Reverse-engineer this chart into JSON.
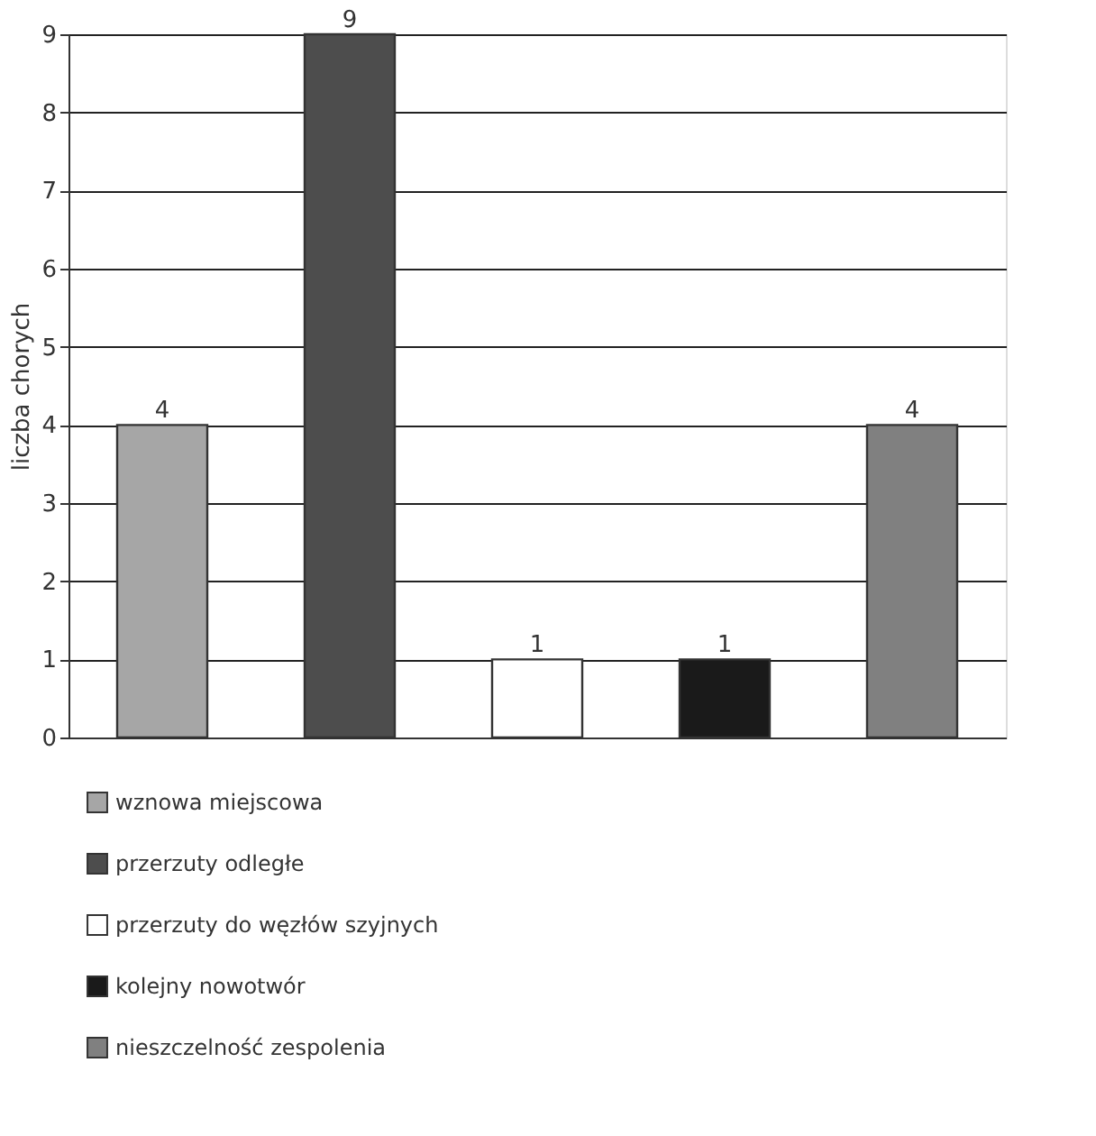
{
  "chart_data": {
    "type": "bar",
    "ylabel": "liczba chorych",
    "categories": [
      null,
      null,
      null,
      null,
      null
    ],
    "series": [
      {
        "name": "wznowa miejscowa",
        "color": "#a6a6a6",
        "values": [
          4,
          null,
          null,
          null,
          null
        ]
      },
      {
        "name": "przerzuty odległe",
        "color": "#4d4d4d",
        "values": [
          null,
          9,
          null,
          null,
          null
        ]
      },
      {
        "name": "przerzuty do węzłów szyjnych",
        "color": "#ffffff",
        "values": [
          null,
          null,
          1,
          null,
          null
        ]
      },
      {
        "name": "kolejny nowotwór",
        "color": "#1a1a1a",
        "values": [
          null,
          null,
          null,
          1,
          null
        ]
      },
      {
        "name": "nieszczelność zespolenia",
        "color": "#808080",
        "values": [
          null,
          null,
          null,
          null,
          4
        ]
      }
    ],
    "ylim": [
      0,
      9
    ],
    "yticks": [
      0,
      1,
      2,
      3,
      4,
      5,
      6,
      7,
      8,
      9
    ],
    "grid": "y",
    "legend": "bottom",
    "data_labels": true
  }
}
